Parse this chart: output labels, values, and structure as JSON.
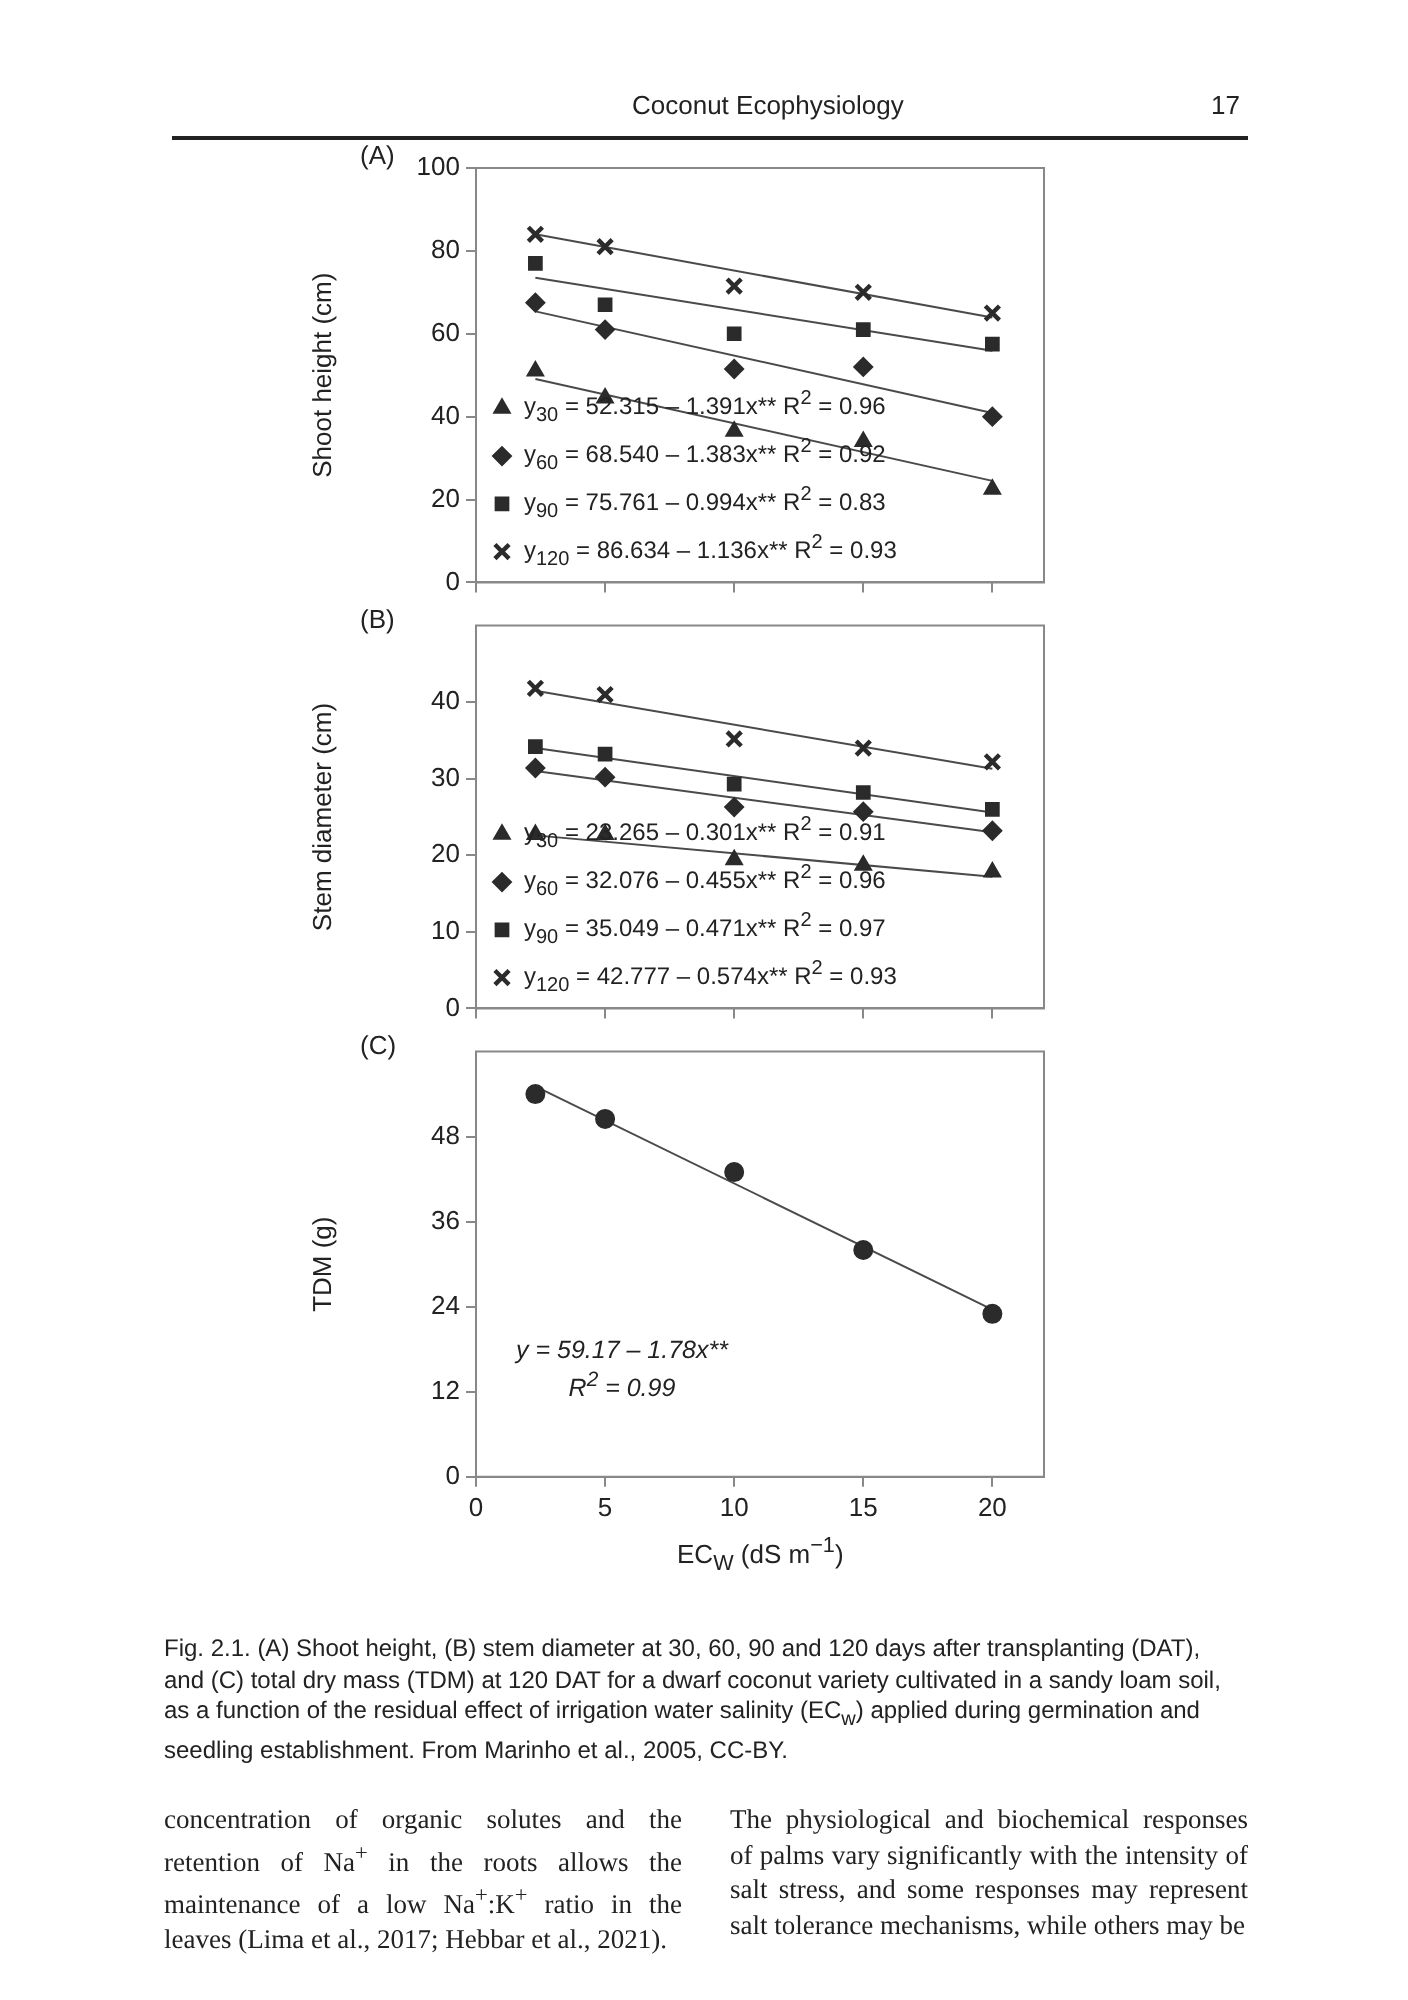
{
  "chart_data": [
    {
      "type": "scatter",
      "title": "(A)",
      "ylabel": "Shoot height (cm)",
      "xlim": [
        0,
        22
      ],
      "xticks": [
        0,
        5,
        10,
        15,
        20
      ],
      "ylim": [
        0,
        100
      ],
      "yticks": [
        0,
        20,
        40,
        60,
        80,
        100
      ],
      "tick_labels": "y",
      "grid": false,
      "legend": "bottom left",
      "annotations": [
        "Coconut Ecophysiology",
        "17"
      ],
      "series": [
        {
          "name": "y$_{30}$ = 52.315 – 1.391x** R$^{2}$ = 0.96",
          "color": "#2b2b2b",
          "marker": "triangle",
          "x": [
            2.3,
            5,
            10,
            15,
            20
          ],
          "values": [
            51,
            44.5,
            36.5,
            34,
            22.5
          ]
        },
        {
          "name": "y$_{60}$ = 68.540 – 1.383x** R$^{2}$ = 0.92",
          "color": "#2b2b2b",
          "marker": "diamond",
          "x": [
            2.3,
            5,
            10,
            15,
            20
          ],
          "values": [
            67.5,
            61,
            51.5,
            52,
            40
          ]
        },
        {
          "name": "y$_{90}$ = 75.761 – 0.994x** R$^{2}$ = 0.83",
          "color": "#2b2b2b",
          "marker": "square",
          "x": [
            2.3,
            5,
            10,
            15,
            20
          ],
          "values": [
            77,
            67,
            60,
            61,
            57.5
          ]
        },
        {
          "name": "y$_{120}$ = 86.634 – 1.136x** R$^{2}$ = 0.93",
          "color": "#2b2b2b",
          "marker": "cross",
          "x": [
            2.3,
            5,
            10,
            15,
            20
          ],
          "values": [
            84,
            81,
            71.5,
            70,
            65
          ]
        },
        {
          "type": "line",
          "color": "#4a4a4a",
          "marker": "none",
          "x": [
            2.3,
            20
          ],
          "values": [
            49.1,
            24.5
          ]
        },
        {
          "type": "line",
          "color": "#4a4a4a",
          "marker": "none",
          "x": [
            2.3,
            20
          ],
          "values": [
            65.4,
            40.9
          ]
        },
        {
          "type": "line",
          "color": "#4a4a4a",
          "marker": "none",
          "x": [
            2.3,
            20
          ],
          "values": [
            73.5,
            55.9
          ]
        },
        {
          "type": "line",
          "color": "#4a4a4a",
          "marker": "none",
          "x": [
            2.3,
            20
          ],
          "values": [
            84.0,
            63.9
          ]
        }
      ]
    },
    {
      "type": "scatter",
      "title": "(B)",
      "ylabel": "Stem diameter (cm)",
      "xlim": [
        0,
        22
      ],
      "xticks": [
        0,
        5,
        10,
        15,
        20
      ],
      "ylim": [
        0,
        50
      ],
      "yticks": [
        0,
        10,
        20,
        30,
        40
      ],
      "tick_labels": "y",
      "grid": false,
      "legend": "bottom left",
      "series": [
        {
          "name": "y$_{30}$ = 23.265 – 0.301x** R$^{2}$ = 0.91",
          "color": "#2b2b2b",
          "marker": "triangle",
          "x": [
            2.3,
            5,
            10,
            15,
            20
          ],
          "values": [
            22.7,
            22.7,
            19.4,
            18.7,
            17.8
          ]
        },
        {
          "name": "y$_{60}$ = 32.076 – 0.455x** R$^{2}$ = 0.96",
          "color": "#2b2b2b",
          "marker": "diamond",
          "x": [
            2.3,
            5,
            10,
            15,
            20
          ],
          "values": [
            31.4,
            30.2,
            26.3,
            25.7,
            23.2
          ]
        },
        {
          "name": "y$_{90}$ = 35.049 – 0.471x** R$^{2}$ = 0.97",
          "color": "#2b2b2b",
          "marker": "square",
          "x": [
            2.3,
            5,
            10,
            15,
            20
          ],
          "values": [
            34.2,
            33.2,
            29.3,
            28.2,
            26
          ]
        },
        {
          "name": "y$_{120}$ = 42.777 – 0.574x** R$^{2}$ = 0.93",
          "color": "#2b2b2b",
          "marker": "cross",
          "x": [
            2.3,
            5,
            10,
            15,
            20
          ],
          "values": [
            41.8,
            41,
            35.2,
            34,
            32.2
          ]
        },
        {
          "type": "line",
          "color": "#4a4a4a",
          "marker": "none",
          "x": [
            2.3,
            20
          ],
          "values": [
            22.6,
            17.2
          ]
        },
        {
          "type": "line",
          "color": "#4a4a4a",
          "marker": "none",
          "x": [
            2.3,
            20
          ],
          "values": [
            31.0,
            23.0
          ]
        },
        {
          "type": "line",
          "color": "#4a4a4a",
          "marker": "none",
          "x": [
            2.3,
            20
          ],
          "values": [
            34.0,
            25.6
          ]
        },
        {
          "type": "line",
          "color": "#4a4a4a",
          "marker": "none",
          "x": [
            2.3,
            20
          ],
          "values": [
            41.5,
            31.3
          ]
        }
      ]
    },
    {
      "type": "scatter",
      "title": "(C)",
      "xlabel": "EC$_{W}$ (dS m$^{−1}$)",
      "ylabel": "TDM (g)",
      "xlim": [
        0,
        22
      ],
      "xticks": [
        0,
        5,
        10,
        15,
        20
      ],
      "ylim": [
        0,
        60
      ],
      "yticks": [
        0,
        12,
        24,
        36,
        48
      ],
      "grid": false,
      "annotations": [
        "y = 59.17 – 1.78x**",
        "R$^{2}$ = 0.99",
        "Fig. 2.1. (A) Shoot height, (B) stem diameter at 30, 60, 90 and 120 days after transplanting (DAT), and (C) total dry mass (TDM) at 120 DAT for a dwarf coconut variety cultivated in a sandy loam soil, as a function of the residual effect of irrigation water salinity (EC$_{w}$) applied during germination and seedling establishment. From Marinho et al., 2005, CC-BY.",
        "concentration of organic solutes and the retention of Na$^{+}$ in the roots allows the maintenance of a low Na$^{+}$:K$^{+}$ ratio in the leaves (Lima et al., 2017; Hebbar et al., 2021).",
        "The physiological and biochemical responses of palms vary significantly with the intensity of salt stress, and some responses may represent salt tolerance mechanisms, while others may be"
      ],
      "series": [
        {
          "color": "#2b2b2b",
          "marker": "circle",
          "x": [
            2.3,
            5,
            10,
            15,
            20
          ],
          "values": [
            54,
            50.5,
            43,
            32,
            23
          ]
        },
        {
          "type": "line",
          "color": "#4a4a4a",
          "marker": "none",
          "x": [
            2.3,
            20
          ],
          "values": [
            55.1,
            23.6
          ]
        }
      ]
    }
  ]
}
